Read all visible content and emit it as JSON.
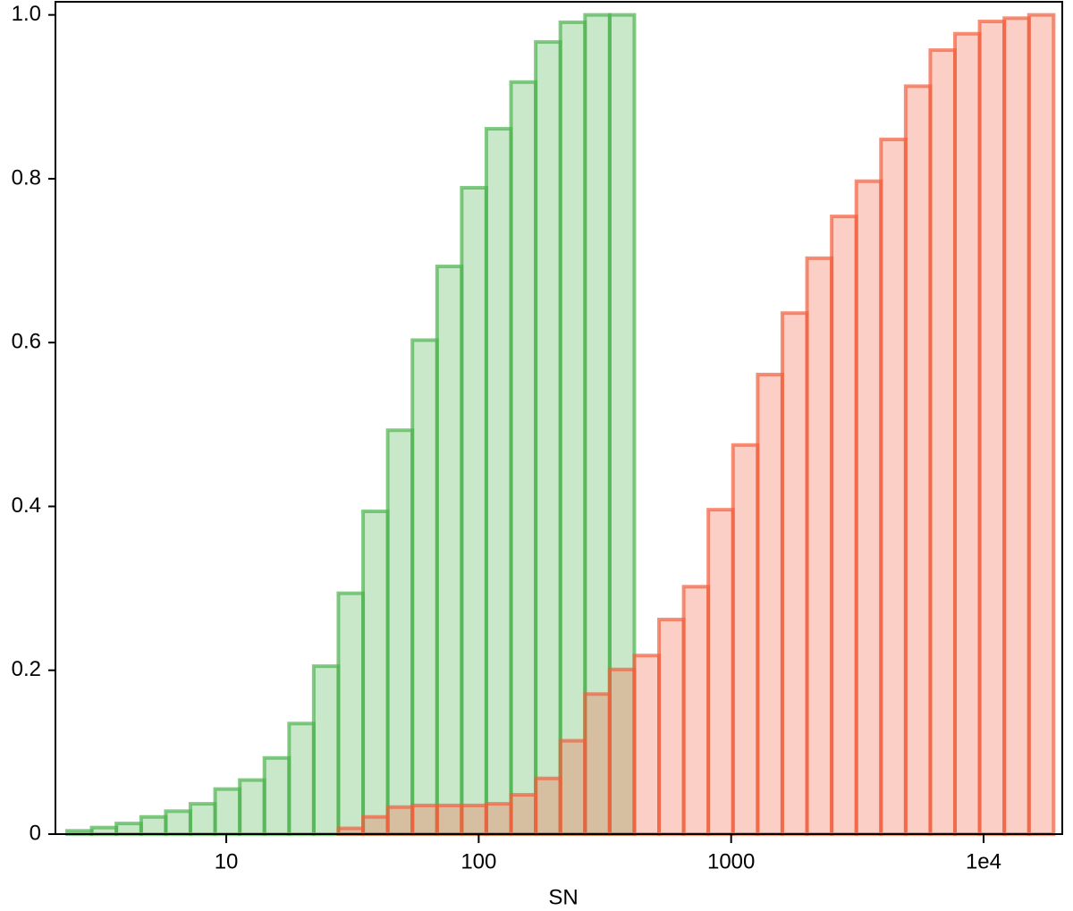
{
  "chart_data": {
    "type": "histogram",
    "xlabel": "SN",
    "xscale": "log",
    "xlim": [
      2.105,
      20500
    ],
    "ylim": [
      0,
      1.016
    ],
    "xticks": [
      10,
      100,
      1000,
      {
        "value": 10000,
        "label": "1e4"
      }
    ],
    "yticks": [
      0,
      0.2,
      0.4,
      0.6,
      0.8,
      {
        "value": 1,
        "label": "1.0"
      }
    ],
    "series": [
      {
        "color": "#4db350",
        "bins": [
          2.34,
          2.93,
          3.67,
          4.6,
          5.76,
          7.21,
          9.03,
          11.31,
          14.16,
          17.74,
          22.21,
          27.81,
          34.83,
          43.61,
          54.61,
          68.39,
          85.64,
          107.2,
          134.3,
          168.2,
          210.6,
          263.8,
          330.3,
          413.6
        ],
        "values": [
          0.004,
          0.008,
          0.013,
          0.021,
          0.028,
          0.037,
          0.055,
          0.066,
          0.093,
          0.135,
          0.205,
          0.294,
          0.394,
          0.493,
          0.603,
          0.693,
          0.789,
          0.861,
          0.918,
          0.967,
          0.991,
          1.0,
          1.0
        ]
      },
      {
        "color": "#f2603f",
        "bins": [
          27.81,
          34.83,
          43.61,
          54.61,
          68.39,
          85.64,
          107.2,
          134.3,
          168.2,
          210.6,
          263.8,
          330.3,
          413.6,
          518.0,
          648.6,
          812.2,
          1017,
          1274,
          1595,
          1998,
          2502,
          3133,
          3923,
          4913,
          6152,
          7704,
          9647,
          12080,
          15130,
          18950
        ],
        "values": [
          0.007,
          0.021,
          0.033,
          0.035,
          0.035,
          0.035,
          0.037,
          0.048,
          0.068,
          0.114,
          0.171,
          0.201,
          0.218,
          0.262,
          0.302,
          0.396,
          0.475,
          0.561,
          0.636,
          0.703,
          0.754,
          0.797,
          0.848,
          0.913,
          0.957,
          0.977,
          0.992,
          0.996,
          1.0
        ]
      }
    ]
  }
}
